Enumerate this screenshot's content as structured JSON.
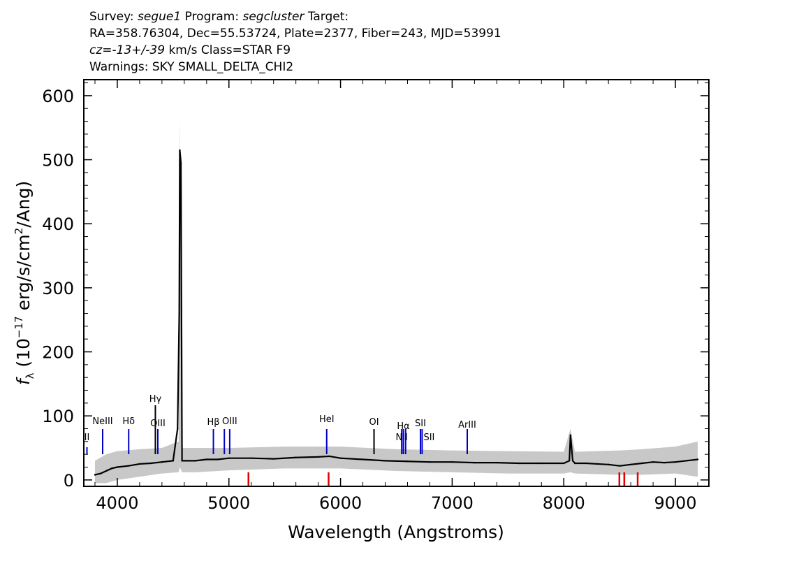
{
  "header": {
    "line1": {
      "survey_label": "Survey:",
      "survey": "segue1",
      "program_label": "Program:",
      "program": "segcluster",
      "target_label": "Target:"
    },
    "line2": "RA=358.76304, Dec=55.53724, Plate=2377, Fiber=243, MJD=53991",
    "line3": {
      "cz": "cz=-13+/-39",
      "rest": "km/s Class=STAR F9"
    },
    "line4": "Warnings: SKY SMALL_DELTA_CHI2"
  },
  "chart_data": {
    "type": "line",
    "xlabel": "Wavelength (Angstroms)",
    "ylabel": "f_λ (10^-17 erg/s/cm^2/Ang)",
    "xlim": [
      3700,
      9300
    ],
    "ylim": [
      -10,
      625
    ],
    "xticks": [
      4000,
      5000,
      6000,
      7000,
      8000,
      9000
    ],
    "yticks": [
      0,
      100,
      200,
      300,
      400,
      500,
      600
    ],
    "grid": false,
    "series": [
      {
        "role": "flux",
        "color": "#000000",
        "x": [
          3800,
          3850,
          3900,
          3950,
          4000,
          4100,
          4200,
          4300,
          4400,
          4500,
          4540,
          4555,
          4560,
          4570,
          4580,
          4600,
          4700,
          4800,
          4900,
          5000,
          5200,
          5400,
          5600,
          5800,
          5900,
          6000,
          6200,
          6400,
          6600,
          6800,
          7000,
          7200,
          7400,
          7600,
          7800,
          8000,
          8050,
          8060,
          8080,
          8100,
          8200,
          8300,
          8400,
          8500,
          8600,
          8700,
          8800,
          8900,
          9000,
          9100,
          9200
        ],
        "y": [
          8,
          10,
          14,
          18,
          20,
          22,
          25,
          26,
          28,
          30,
          80,
          260,
          515,
          495,
          30,
          30,
          30,
          32,
          32,
          34,
          34,
          33,
          35,
          36,
          37,
          34,
          32,
          30,
          29,
          28,
          28,
          27,
          27,
          26,
          26,
          26,
          30,
          70,
          30,
          26,
          26,
          25,
          24,
          22,
          24,
          26,
          28,
          27,
          28,
          30,
          32
        ]
      },
      {
        "role": "error envelope",
        "color": "#c8c8c8",
        "x": [
          3800,
          3900,
          4000,
          4200,
          4400,
          4550,
          4560,
          4580,
          4700,
          5000,
          5500,
          6000,
          6500,
          7000,
          7500,
          8000,
          8060,
          8100,
          8500,
          8700,
          9000,
          9200
        ],
        "y_high": [
          30,
          40,
          45,
          48,
          50,
          60,
          570,
          50,
          50,
          50,
          52,
          52,
          48,
          46,
          45,
          44,
          80,
          44,
          46,
          48,
          52,
          60
        ],
        "y_low": [
          -5,
          -5,
          0,
          5,
          10,
          12,
          20,
          12,
          12,
          15,
          18,
          18,
          14,
          12,
          10,
          10,
          12,
          10,
          8,
          8,
          10,
          5
        ]
      }
    ],
    "emission_lines": [
      {
        "label": "NeII",
        "wave": 3728,
        "label_shown": "II",
        "color": "#0000c8"
      },
      {
        "label": "NeIII",
        "wave": 3869,
        "color": "#0000c8"
      },
      {
        "label": "Hδ",
        "wave": 4102,
        "color": "#0000c8"
      },
      {
        "label": "Hγ",
        "wave": 4341,
        "color": "#000000"
      },
      {
        "label": "OIII",
        "wave": 4363,
        "color": "#0000c8"
      },
      {
        "label": "Hβ",
        "wave": 4861,
        "color": "#0000c8"
      },
      {
        "label": "OIII",
        "wave": 4959,
        "color": "#0000c8"
      },
      {
        "label": "OIII",
        "wave": 5007,
        "color": "#0000c8"
      },
      {
        "label": "HeI",
        "wave": 5876,
        "color": "#0000c8"
      },
      {
        "label": "OI",
        "wave": 6300,
        "color": "#000000"
      },
      {
        "label": "NII",
        "wave": 6548,
        "color": "#0000c8"
      },
      {
        "label": "Hα",
        "wave": 6563,
        "color": "#0000c8"
      },
      {
        "label": "NII",
        "wave": 6583,
        "color": "#0000c8"
      },
      {
        "label": "SII",
        "wave": 6716,
        "color": "#0000c8"
      },
      {
        "label": "SII",
        "wave": 6731,
        "color": "#0000c8"
      },
      {
        "label": "ArIII",
        "wave": 7135,
        "color": "#0000c8"
      }
    ],
    "absorption_markers": [
      {
        "wave": 5175,
        "color": "#e00000"
      },
      {
        "wave": 5893,
        "color": "#e00000"
      },
      {
        "wave": 8498,
        "color": "#e00000"
      },
      {
        "wave": 8542,
        "color": "#e00000"
      },
      {
        "wave": 8662,
        "color": "#e00000"
      }
    ]
  }
}
